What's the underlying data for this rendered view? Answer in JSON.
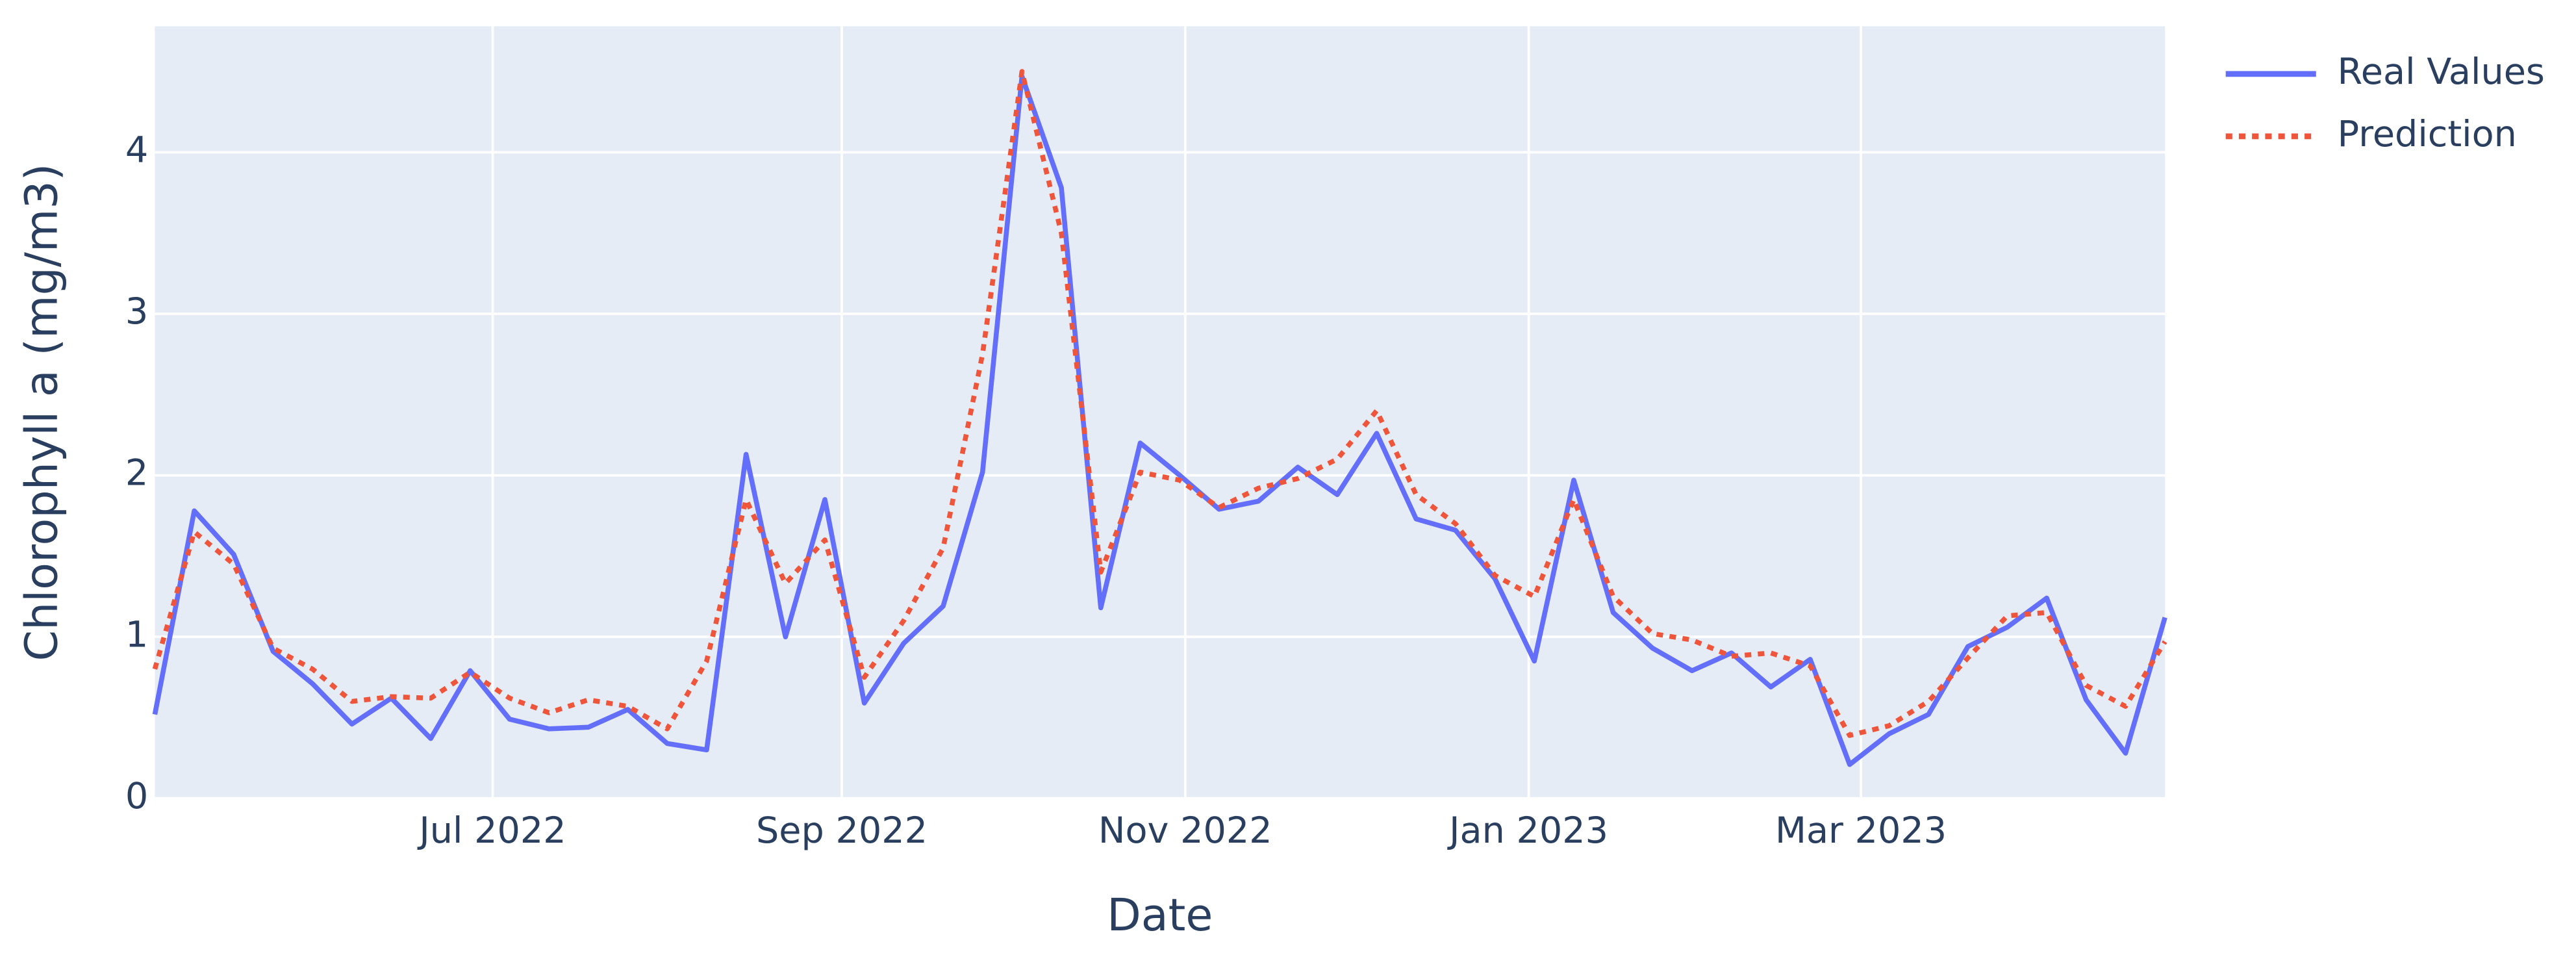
{
  "chart_data": {
    "type": "line",
    "x_label": "Date",
    "y_label": "Chlorophyll a (mg/m3)",
    "x": [
      "2022-05-02",
      "2022-05-09",
      "2022-05-16",
      "2022-05-23",
      "2022-05-30",
      "2022-06-06",
      "2022-06-13",
      "2022-06-20",
      "2022-06-27",
      "2022-07-04",
      "2022-07-11",
      "2022-07-18",
      "2022-07-25",
      "2022-08-01",
      "2022-08-08",
      "2022-08-15",
      "2022-08-22",
      "2022-08-29",
      "2022-09-05",
      "2022-09-12",
      "2022-09-19",
      "2022-09-26",
      "2022-10-03",
      "2022-10-10",
      "2022-10-17",
      "2022-10-24",
      "2022-10-31",
      "2022-11-07",
      "2022-11-14",
      "2022-11-21",
      "2022-11-28",
      "2022-12-05",
      "2022-12-12",
      "2022-12-19",
      "2022-12-26",
      "2023-01-02",
      "2023-01-09",
      "2023-01-16",
      "2023-01-23",
      "2023-01-30",
      "2023-02-06",
      "2023-02-13",
      "2023-02-20",
      "2023-02-27",
      "2023-03-06",
      "2023-03-13",
      "2023-03-20",
      "2023-03-27",
      "2023-04-03",
      "2023-04-10",
      "2023-04-17",
      "2023-04-24"
    ],
    "series": [
      {
        "name": "Real Values",
        "color": "#636efa",
        "dash": "solid",
        "values": [
          0.52,
          1.78,
          1.51,
          0.91,
          0.71,
          0.46,
          0.62,
          0.37,
          0.79,
          0.49,
          0.43,
          0.44,
          0.55,
          0.34,
          0.3,
          2.13,
          1.0,
          1.85,
          0.59,
          0.96,
          1.19,
          2.02,
          4.47,
          3.78,
          1.18,
          2.2,
          2.0,
          1.79,
          1.84,
          2.05,
          1.88,
          2.26,
          1.73,
          1.66,
          1.36,
          0.85,
          1.97,
          1.15,
          0.93,
          0.79,
          0.9,
          0.69,
          0.86,
          0.21,
          0.4,
          0.52,
          0.94,
          1.06,
          1.24,
          0.61,
          0.28,
          1.12
        ]
      },
      {
        "name": "Prediction",
        "color": "#ef553b",
        "dash": "dot",
        "values": [
          0.8,
          1.65,
          1.45,
          0.93,
          0.8,
          0.6,
          0.63,
          0.62,
          0.78,
          0.62,
          0.53,
          0.61,
          0.57,
          0.43,
          0.85,
          1.85,
          1.33,
          1.6,
          0.75,
          1.1,
          1.55,
          2.75,
          4.5,
          3.5,
          1.4,
          2.02,
          1.97,
          1.8,
          1.92,
          1.98,
          2.1,
          2.4,
          1.88,
          1.7,
          1.38,
          1.25,
          1.85,
          1.25,
          1.02,
          0.98,
          0.88,
          0.9,
          0.82,
          0.39,
          0.45,
          0.6,
          0.87,
          1.13,
          1.15,
          0.7,
          0.57,
          0.97
        ]
      }
    ],
    "xlim": [
      "2022-05-02",
      "2023-04-24"
    ],
    "xticks": [
      {
        "value": "2022-07-01",
        "label": "Jul 2022"
      },
      {
        "value": "2022-09-01",
        "label": "Sep 2022"
      },
      {
        "value": "2022-11-01",
        "label": "Nov 2022"
      },
      {
        "value": "2023-01-01",
        "label": "Jan 2023"
      },
      {
        "value": "2023-03-01",
        "label": "Mar 2023"
      }
    ],
    "ylim": [
      0,
      4.78
    ],
    "yticks": [
      0,
      1,
      2,
      3,
      4
    ],
    "grid": true
  }
}
